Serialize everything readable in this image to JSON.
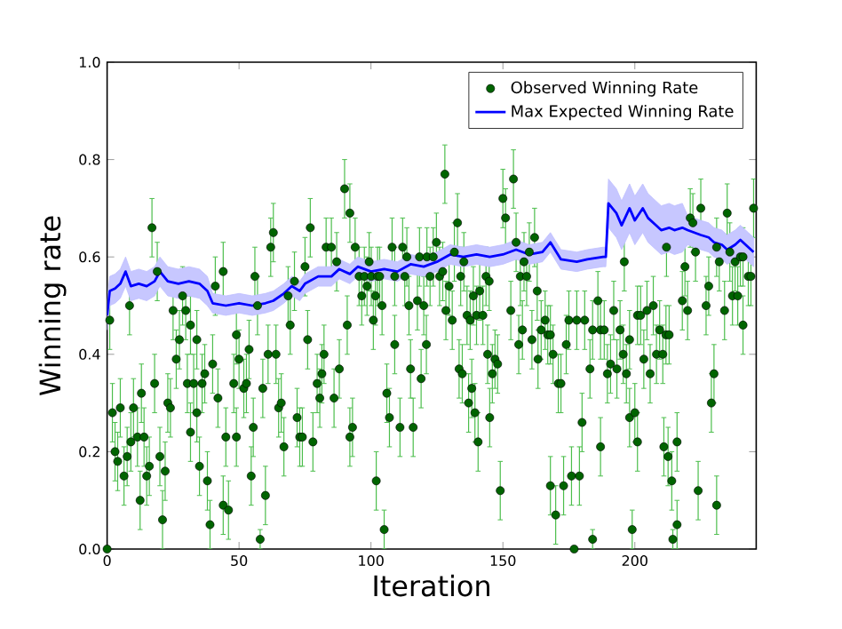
{
  "chart_data": {
    "type": "scatter",
    "xlabel": "Iteration",
    "ylabel": "Winning rate",
    "xlim": [
      0,
      246
    ],
    "ylim": [
      0,
      1
    ],
    "xticks": [
      0,
      50,
      100,
      150,
      200
    ],
    "yticks": [
      {
        "value": 0,
        "label": "0.0"
      },
      {
        "value": 0.2,
        "label": "0.2"
      },
      {
        "value": 0.4,
        "label": "0.4"
      },
      {
        "value": 0.6,
        "label": "0.6"
      },
      {
        "value": 0.8,
        "label": "0.8"
      },
      {
        "value": 1,
        "label": "1.0"
      }
    ],
    "legend": "top right",
    "series": [
      {
        "name": "Observed Winning Rate",
        "marker": "circle",
        "color": "#006400",
        "x": [
          0,
          1,
          2,
          3,
          5,
          4,
          6.4,
          7.6,
          8.5,
          9,
          10,
          11.5,
          12.5,
          13,
          14,
          15,
          16,
          17,
          18,
          19,
          20,
          21,
          22,
          23,
          24,
          25.0,
          26.2,
          27.4,
          28.6,
          29.8,
          30.4,
          31.6,
          31.6,
          32.8,
          34.0,
          34,
          35,
          36,
          37,
          38,
          39,
          40,
          41,
          42,
          44,
          44,
          45,
          46,
          48,
          49,
          49,
          50,
          51.8,
          52.8,
          53.8,
          54.6,
          55.4,
          56,
          57,
          58,
          59,
          60,
          61,
          62,
          63,
          64,
          65,
          66,
          67,
          68.6,
          69.4,
          71,
          72,
          73,
          74,
          75,
          76,
          77,
          78,
          79.6,
          80.6,
          81.4,
          82.2,
          83,
          85,
          86,
          87,
          88,
          90,
          91,
          92,
          92,
          93,
          94,
          95.5,
          96.5,
          97.5,
          98.5,
          99.3,
          100.1,
          100.9,
          101.7,
          102.5,
          102,
          103.3,
          104.2,
          105,
          106,
          107,
          108,
          109,
          109,
          111,
          112,
          112.8,
          113.6,
          114.4,
          115,
          116,
          117.6,
          118.4,
          119,
          120,
          121,
          121.2,
          122.4,
          123.6,
          124.8,
          126.0,
          127.2,
          128.4,
          128,
          129.6,
          130.8,
          131.6,
          132.8,
          134.0,
          135.2,
          136.4,
          137.6,
          138.8,
          140.0,
          133.4,
          142.4,
          141.2,
          134.6,
          137.0,
          143.6,
          138.2,
          139.4,
          144.8,
          140.6,
          144.2,
          145,
          146,
          147,
          148,
          149,
          150,
          151,
          153,
          154,
          155,
          156,
          156.6,
          157.4,
          158,
          159,
          160,
          161,
          162,
          163,
          163.3,
          164.5,
          166,
          167,
          168,
          168,
          169,
          170,
          171,
          172,
          173,
          174,
          175,
          176,
          177,
          178,
          179,
          180,
          181,
          183,
          184,
          184,
          186,
          187,
          187,
          188.4,
          189.6,
          190.8,
          192.0,
          193.2,
          194.4,
          195.6,
          196.8,
          196,
          198.0,
          198,
          199,
          200,
          201,
          201.0,
          202.2,
          203.4,
          204.6,
          205.8,
          207.0,
          208.2,
          209.4,
          210.6,
          211.8,
          213.0,
          211,
          212,
          212.6,
          214,
          214.4,
          216,
          216,
          218,
          219,
          220,
          221,
          222,
          223,
          224,
          225,
          227,
          228,
          229,
          230,
          231,
          231,
          232,
          234,
          235,
          236,
          237,
          238,
          239,
          240,
          241,
          241,
          243,
          244,
          245
        ],
        "values": [
          0.0,
          0.47,
          0.28,
          0.2,
          0.29,
          0.18,
          0.15,
          0.19,
          0.5,
          0.22,
          0.29,
          0.23,
          0.1,
          0.32,
          0.23,
          0.15,
          0.17,
          0.66,
          0.34,
          0.57,
          0.19,
          0.06,
          0.16,
          0.3,
          0.29,
          0.49,
          0.39,
          0.43,
          0.52,
          0.49,
          0.34,
          0.46,
          0.24,
          0.34,
          0.43,
          0.28,
          0.17,
          0.34,
          0.36,
          0.14,
          0.05,
          0.38,
          0.54,
          0.31,
          0.09,
          0.57,
          0.23,
          0.08,
          0.34,
          0.44,
          0.23,
          0.39,
          0.33,
          0.34,
          0.41,
          0.15,
          0.25,
          0.56,
          0.5,
          0.02,
          0.33,
          0.11,
          0.4,
          0.62,
          0.65,
          0.4,
          0.29,
          0.3,
          0.21,
          0.52,
          0.46,
          0.55,
          0.27,
          0.23,
          0.23,
          0.58,
          0.43,
          0.66,
          0.22,
          0.34,
          0.31,
          0.36,
          0.4,
          0.62,
          0.62,
          0.31,
          0.59,
          0.37,
          0.74,
          0.46,
          0.23,
          0.69,
          0.25,
          0.62,
          0.56,
          0.52,
          0.56,
          0.54,
          0.59,
          0.56,
          0.47,
          0.52,
          0.56,
          0.14,
          0.56,
          0.5,
          0.04,
          0.32,
          0.27,
          0.62,
          0.56,
          0.42,
          0.25,
          0.62,
          0.56,
          0.6,
          0.5,
          0.37,
          0.25,
          0.51,
          0.6,
          0.35,
          0.5,
          0.42,
          0.6,
          0.56,
          0.6,
          0.63,
          0.56,
          0.57,
          0.49,
          0.77,
          0.54,
          0.47,
          0.61,
          0.67,
          0.56,
          0.59,
          0.48,
          0.47,
          0.52,
          0.48,
          0.37,
          0.48,
          0.53,
          0.36,
          0.3,
          0.56,
          0.33,
          0.28,
          0.55,
          0.22,
          0.4,
          0.27,
          0.36,
          0.39,
          0.38,
          0.12,
          0.72,
          0.68,
          0.49,
          0.76,
          0.63,
          0.42,
          0.56,
          0.45,
          0.59,
          0.56,
          0.61,
          0.43,
          0.64,
          0.53,
          0.39,
          0.45,
          0.47,
          0.44,
          0.44,
          0.13,
          0.4,
          0.07,
          0.34,
          0.34,
          0.13,
          0.42,
          0.47,
          0.15,
          0.0,
          0.47,
          0.15,
          0.26,
          0.47,
          0.37,
          0.45,
          0.02,
          0.51,
          0.45,
          0.21,
          0.45,
          0.36,
          0.38,
          0.49,
          0.37,
          0.45,
          0.4,
          0.36,
          0.59,
          0.43,
          0.27,
          0.04,
          0.28,
          0.22,
          0.48,
          0.48,
          0.39,
          0.49,
          0.36,
          0.5,
          0.4,
          0.45,
          0.4,
          0.44,
          0.44,
          0.21,
          0.62,
          0.19,
          0.14,
          0.02,
          0.05,
          0.22,
          0.51,
          0.58,
          0.49,
          0.68,
          0.67,
          0.61,
          0.12,
          0.7,
          0.5,
          0.54,
          0.3,
          0.36,
          0.62,
          0.09,
          0.59,
          0.49,
          0.69,
          0.61,
          0.52,
          0.59,
          0.52,
          0.6,
          0.46,
          0.6,
          0.56,
          0.56,
          0.7
        ],
        "errors": [
          null,
          0.06,
          0.06,
          0.06,
          0.06,
          0.06,
          0.06,
          0.06,
          0.06,
          0.06,
          0.06,
          0.06,
          0.06,
          0.06,
          0.06,
          0.06,
          0.06,
          0.06,
          0.06,
          0.06,
          0.06,
          0.06,
          0.06,
          0.06,
          0.06,
          0.06,
          0.06,
          0.06,
          0.06,
          0.06,
          0.06,
          0.06,
          0.06,
          0.06,
          0.06,
          0.06,
          0.06,
          0.06,
          0.06,
          0.06,
          0.05,
          0.06,
          0.06,
          0.06,
          0.06,
          0.06,
          0.06,
          0.06,
          0.06,
          0.06,
          0.06,
          0.06,
          0.06,
          0.06,
          0.06,
          0.06,
          0.06,
          0.06,
          0.06,
          0.02,
          0.06,
          0.06,
          0.06,
          0.06,
          0.06,
          0.06,
          0.06,
          0.06,
          0.06,
          0.06,
          0.06,
          0.06,
          0.06,
          0.06,
          0.06,
          0.06,
          0.06,
          0.06,
          0.06,
          0.06,
          0.06,
          0.06,
          0.06,
          0.06,
          0.06,
          0.06,
          0.06,
          0.06,
          0.06,
          0.06,
          0.06,
          0.06,
          0.06,
          0.06,
          0.06,
          0.06,
          0.06,
          0.06,
          0.06,
          0.06,
          0.06,
          0.06,
          0.06,
          0.06,
          0.06,
          0.06,
          0.04,
          0.06,
          0.06,
          0.06,
          0.06,
          0.06,
          0.06,
          0.06,
          0.06,
          0.06,
          0.06,
          0.06,
          0.06,
          0.06,
          0.06,
          0.06,
          0.06,
          0.06,
          0.06,
          0.06,
          0.06,
          0.06,
          0.06,
          0.06,
          0.06,
          0.06,
          0.06,
          0.06,
          0.06,
          0.06,
          0.06,
          0.06,
          0.06,
          0.06,
          0.06,
          0.06,
          0.06,
          0.06,
          0.06,
          0.06,
          0.06,
          0.06,
          0.06,
          0.06,
          0.06,
          0.06,
          0.06,
          0.06,
          0.06,
          0.06,
          0.06,
          0.06,
          0.06,
          0.06,
          0.06,
          0.06,
          0.06,
          0.06,
          0.06,
          0.06,
          0.06,
          0.06,
          0.06,
          0.06,
          0.06,
          0.06,
          0.06,
          0.06,
          0.06,
          0.06,
          0.06,
          0.06,
          0.06,
          0.06,
          0.06,
          0.06,
          0.06,
          0.06,
          0.06,
          0.06,
          null,
          0.06,
          0.06,
          0.06,
          0.06,
          0.06,
          0.06,
          0.02,
          0.06,
          0.06,
          0.06,
          0.06,
          0.06,
          0.06,
          0.06,
          0.06,
          0.06,
          0.06,
          0.06,
          0.06,
          0.06,
          0.06,
          0.04,
          0.06,
          0.06,
          0.06,
          0.06,
          0.06,
          0.06,
          0.06,
          0.06,
          0.06,
          0.06,
          0.06,
          0.06,
          0.06,
          0.06,
          0.06,
          0.06,
          0.06,
          0.02,
          0.05,
          0.06,
          0.06,
          0.06,
          0.06,
          0.06,
          0.06,
          0.06,
          0.06,
          0.06,
          0.06,
          0.06,
          0.06,
          0.06,
          0.06,
          0.06,
          0.06,
          0.06,
          0.06,
          0.06,
          0.06,
          0.06,
          0.06,
          0.06,
          0.06,
          0.06,
          0.06,
          0.06,
          0.06
        ]
      },
      {
        "name": "Max Expected Winning Rate",
        "type": "line",
        "marker": "none",
        "line_style": "solid",
        "color": "#0000ff",
        "x": [
          0,
          1,
          3,
          5,
          7,
          9,
          12,
          15,
          18,
          20,
          23,
          27,
          31,
          35,
          38,
          40,
          45,
          50,
          55,
          60,
          63,
          67,
          70,
          73,
          75,
          80,
          85,
          88,
          92,
          95,
          100,
          105,
          110,
          115,
          120,
          125,
          130,
          135,
          140,
          145,
          150,
          155,
          160,
          165,
          168,
          172,
          178,
          182,
          188,
          189,
          190,
          193,
          195,
          198,
          200,
          203,
          205,
          208,
          210,
          213,
          215,
          218,
          220,
          225,
          228,
          230,
          233,
          235,
          238,
          240,
          243,
          245
        ],
        "values": [
          0.48,
          0.53,
          0.535,
          0.545,
          0.57,
          0.54,
          0.545,
          0.54,
          0.55,
          0.57,
          0.55,
          0.545,
          0.55,
          0.545,
          0.53,
          0.505,
          0.5,
          0.505,
          0.5,
          0.505,
          0.51,
          0.525,
          0.54,
          0.53,
          0.545,
          0.56,
          0.56,
          0.575,
          0.565,
          0.58,
          0.57,
          0.575,
          0.57,
          0.585,
          0.58,
          0.59,
          0.605,
          0.6,
          0.605,
          0.6,
          0.605,
          0.615,
          0.605,
          0.61,
          0.63,
          0.595,
          0.59,
          0.595,
          0.6,
          0.6,
          0.71,
          0.69,
          0.665,
          0.7,
          0.675,
          0.7,
          0.68,
          0.665,
          0.655,
          0.66,
          0.655,
          0.66,
          0.655,
          0.645,
          0.64,
          0.63,
          0.625,
          0.615,
          0.625,
          0.635,
          0.62,
          0.61
        ],
        "lower": [
          0.45,
          0.5,
          0.505,
          0.515,
          0.54,
          0.51,
          0.515,
          0.51,
          0.52,
          0.54,
          0.52,
          0.515,
          0.52,
          0.515,
          0.5,
          0.485,
          0.48,
          0.485,
          0.48,
          0.485,
          0.49,
          0.505,
          0.52,
          0.51,
          0.525,
          0.54,
          0.54,
          0.555,
          0.545,
          0.56,
          0.55,
          0.555,
          0.55,
          0.565,
          0.56,
          0.57,
          0.585,
          0.58,
          0.585,
          0.58,
          0.585,
          0.595,
          0.585,
          0.59,
          0.61,
          0.575,
          0.57,
          0.575,
          0.58,
          0.58,
          0.66,
          0.64,
          0.615,
          0.65,
          0.625,
          0.65,
          0.63,
          0.615,
          0.605,
          0.61,
          0.605,
          0.61,
          0.625,
          0.615,
          0.61,
          0.6,
          0.595,
          0.585,
          0.595,
          0.605,
          0.59,
          0.58
        ],
        "upper": [
          0.51,
          0.56,
          0.565,
          0.575,
          0.6,
          0.57,
          0.575,
          0.57,
          0.58,
          0.6,
          0.58,
          0.575,
          0.58,
          0.575,
          0.56,
          0.525,
          0.52,
          0.525,
          0.52,
          0.525,
          0.53,
          0.545,
          0.56,
          0.55,
          0.565,
          0.58,
          0.58,
          0.595,
          0.585,
          0.6,
          0.59,
          0.595,
          0.59,
          0.605,
          0.6,
          0.61,
          0.625,
          0.62,
          0.625,
          0.62,
          0.625,
          0.635,
          0.625,
          0.63,
          0.65,
          0.615,
          0.61,
          0.615,
          0.62,
          0.62,
          0.76,
          0.74,
          0.715,
          0.75,
          0.725,
          0.75,
          0.73,
          0.715,
          0.705,
          0.71,
          0.705,
          0.71,
          0.685,
          0.675,
          0.67,
          0.66,
          0.655,
          0.645,
          0.655,
          0.665,
          0.65,
          0.64
        ]
      }
    ]
  }
}
